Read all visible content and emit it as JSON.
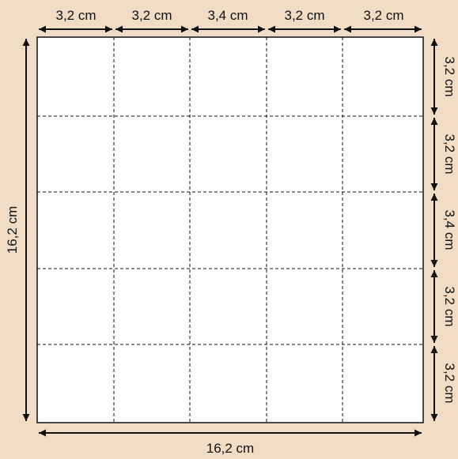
{
  "colors": {
    "background": "#f1dcc6",
    "sheet": "#ffffff",
    "line": "#111111"
  },
  "top_dimensions": [
    "3,2 cm",
    "3,2 cm",
    "3,4 cm",
    "3,2 cm",
    "3,2 cm"
  ],
  "right_dimensions": [
    "3,2 cm",
    "3,2 cm",
    "3,4 cm",
    "3,2 cm",
    "3,2 cm"
  ],
  "total_width": "16,2 cm",
  "total_height": "16,2 cm"
}
